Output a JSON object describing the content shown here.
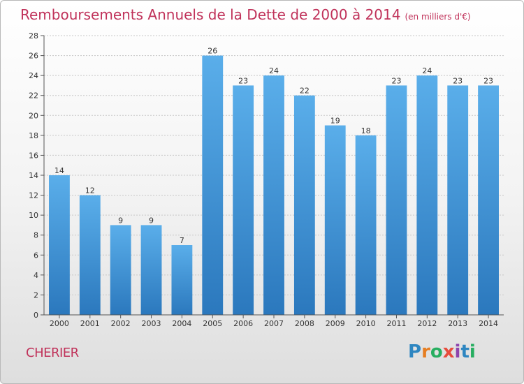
{
  "header": {
    "title": "Remboursements Annuels de la Dette de 2000 à 2014",
    "unit": "(en milliers d'€)"
  },
  "footer": {
    "commune": "CHERIER",
    "brand_letters": [
      "P",
      "r",
      "o",
      "x",
      "i",
      "t",
      "i"
    ],
    "brand_colors": [
      "#2e86c1",
      "#e67e22",
      "#27ae60",
      "#e74c3c",
      "#8e44ad",
      "#2e86c1",
      "#27ae60"
    ]
  },
  "colors": {
    "bar": "#4a9fe0",
    "bar_dark": "#2f7fc2",
    "title": "#c0325a",
    "grid": "#c8c8c8"
  },
  "chart_data": {
    "type": "bar",
    "title": "Remboursements Annuels de la Dette de 2000 à 2014",
    "subtitle": "(en milliers d'€)",
    "categories": [
      "2000",
      "2001",
      "2002",
      "2003",
      "2004",
      "2005",
      "2006",
      "2007",
      "2008",
      "2009",
      "2010",
      "2011",
      "2012",
      "2013",
      "2014"
    ],
    "values": [
      14,
      12,
      9,
      9,
      7,
      26,
      23,
      24,
      22,
      19,
      18,
      23,
      24,
      23,
      23
    ],
    "ylim": [
      0,
      28
    ],
    "yticks": [
      0,
      2,
      4,
      6,
      8,
      10,
      12,
      14,
      16,
      18,
      20,
      22,
      24,
      26,
      28
    ],
    "grid": true,
    "data_labels": true
  }
}
